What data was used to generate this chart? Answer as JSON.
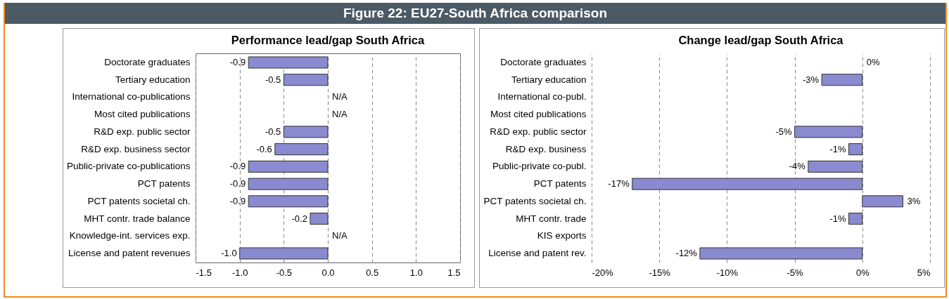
{
  "chart_data": [
    {
      "type": "bar",
      "orientation": "horizontal",
      "title": "Performance lead/gap South Africa",
      "annotations": [
        "Figure 22: EU27-South Africa comparison"
      ],
      "categories": [
        "Doctorate graduates",
        "Tertiary education",
        "International co-publications",
        "Most cited publications",
        "R&D exp. public sector",
        "R&D exp. business sector",
        "Public-private co-publications",
        "PCT patents",
        "PCT patents societal ch.",
        "MHT contr. trade balance",
        "Knowledge-int. services exp.",
        "License and patent revenues"
      ],
      "values": [
        -0.9,
        -0.5,
        null,
        null,
        -0.5,
        -0.6,
        -0.9,
        -0.9,
        -0.9,
        -0.2,
        null,
        -1.0
      ],
      "value_labels": [
        "-0.9",
        "-0.5",
        "N/A",
        "N/A",
        "-0.5",
        "-0.6",
        "-0.9",
        "-0.9",
        "-0.9",
        "-0.2",
        "N/A",
        "-1.0"
      ],
      "color": "#8a8ad0",
      "xlim": [
        -1.5,
        1.5
      ],
      "xticks": [
        {
          "value": -1.5,
          "label": "-1.5"
        },
        {
          "value": -1,
          "label": "-1.0"
        },
        {
          "value": -0.5,
          "label": "-0.5"
        },
        {
          "value": 0,
          "label": "0.0"
        },
        0.5,
        {
          "value": 1,
          "label": "1.0"
        },
        1.5
      ],
      "grid": "x"
    },
    {
      "type": "bar",
      "orientation": "horizontal",
      "title": "Change lead/gap South Africa",
      "categories": [
        "Doctorate graduates",
        "Tertiary education",
        "International co-publ.",
        "Most cited publications",
        "R&D exp. public sector",
        "R&D exp. business",
        "Public-private co-publ.",
        "PCT patents",
        "PCT patents societal ch.",
        "MHT contr. trade",
        "KIS exports",
        "License and patent rev."
      ],
      "values": [
        0,
        -3,
        null,
        null,
        -5,
        -1,
        -4,
        -17,
        3,
        -1,
        null,
        -12
      ],
      "value_labels": [
        "0%",
        "-3%",
        null,
        null,
        "-5%",
        "-1%",
        "-4%",
        "-17%",
        "3%",
        "-1%",
        null,
        "-12%"
      ],
      "color": "#8a8ad0",
      "xlim": [
        -20,
        5
      ],
      "xticks": [
        {
          "value": -20,
          "label": "-20%"
        },
        {
          "value": -15,
          "label": "-15%"
        },
        {
          "value": -10,
          "label": "-10%"
        },
        {
          "value": -5,
          "label": "-5%"
        },
        {
          "value": 0,
          "label": "0%"
        },
        {
          "value": 5,
          "label": "5%"
        }
      ],
      "grid": "x"
    }
  ]
}
